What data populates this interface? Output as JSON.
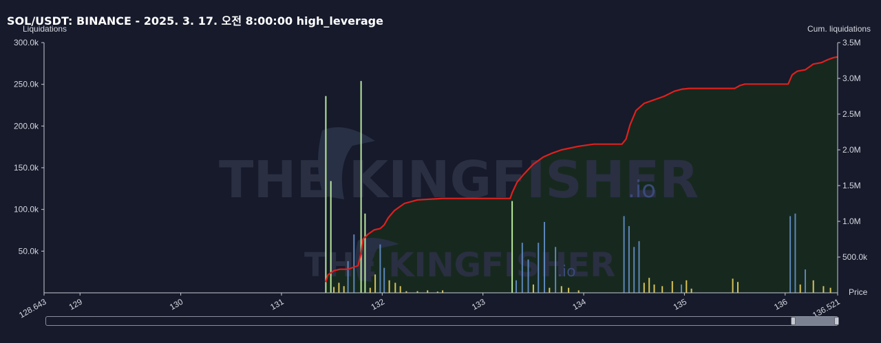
{
  "header": {
    "title": "SOL/USDT: BINANCE - 2025. 3. 17. 오전 8:00:00 high_leverage"
  },
  "watermark": {
    "text": "THE KINGFISHER",
    "suffix": ".io"
  },
  "colors": {
    "background": "#161a2b",
    "cumulative_line": "#e0201e",
    "cumulative_fill": "#17291f",
    "green_bar": "#b9e89a",
    "yellow_bar": "#d8c256",
    "blue_bar": "#5c86b8",
    "axis": "#c9cbd3"
  },
  "chart_data": {
    "type": "bar",
    "left_axis_label": "Liquidations",
    "right_axis_label": "Cum. liquidations",
    "x_axis_label": "Price",
    "xlim": [
      128.643,
      136.521
    ],
    "ylim_left": [
      0,
      300000
    ],
    "ylim_right": [
      0,
      3500000
    ],
    "x_ticks": [
      "128.643",
      "129",
      "130",
      "131",
      "132",
      "133",
      "134",
      "135",
      "136",
      "136.521"
    ],
    "y_left_ticks": [
      "50.0k",
      "100.0k",
      "150.0k",
      "200.0k",
      "250.0k",
      "300.0k"
    ],
    "y_right_ticks": [
      "500.0k",
      "1.0M",
      "1.5M",
      "2.0M",
      "2.5M",
      "3.0M",
      "3.5M"
    ],
    "grid": false,
    "series": [
      {
        "name": "Liquidations",
        "bars": [
          {
            "x": 131.44,
            "value": 236000,
            "color": "green"
          },
          {
            "x": 131.49,
            "value": 134000,
            "color": "green"
          },
          {
            "x": 131.52,
            "value": 7000,
            "color": "yellow"
          },
          {
            "x": 131.57,
            "value": 12000,
            "color": "yellow"
          },
          {
            "x": 131.62,
            "value": 8000,
            "color": "yellow"
          },
          {
            "x": 131.66,
            "value": 38000,
            "color": "blue"
          },
          {
            "x": 131.72,
            "value": 70000,
            "color": "blue"
          },
          {
            "x": 131.79,
            "value": 254000,
            "color": "green"
          },
          {
            "x": 131.83,
            "value": 95000,
            "color": "green"
          },
          {
            "x": 131.88,
            "value": 6000,
            "color": "yellow"
          },
          {
            "x": 131.93,
            "value": 22000,
            "color": "yellow"
          },
          {
            "x": 131.98,
            "value": 58000,
            "color": "blue"
          },
          {
            "x": 132.02,
            "value": 30000,
            "color": "blue"
          },
          {
            "x": 132.07,
            "value": 15000,
            "color": "yellow"
          },
          {
            "x": 132.13,
            "value": 12000,
            "color": "yellow"
          },
          {
            "x": 132.18,
            "value": 8000,
            "color": "yellow"
          },
          {
            "x": 132.24,
            "value": 2000,
            "color": "yellow"
          },
          {
            "x": 132.35,
            "value": 2000,
            "color": "yellow"
          },
          {
            "x": 132.45,
            "value": 3000,
            "color": "yellow"
          },
          {
            "x": 132.55,
            "value": 1500,
            "color": "yellow"
          },
          {
            "x": 132.6,
            "value": 3000,
            "color": "yellow"
          },
          {
            "x": 133.29,
            "value": 110000,
            "color": "green"
          },
          {
            "x": 133.33,
            "value": 15000,
            "color": "blue"
          },
          {
            "x": 133.39,
            "value": 60000,
            "color": "blue"
          },
          {
            "x": 133.45,
            "value": 40000,
            "color": "blue"
          },
          {
            "x": 133.5,
            "value": 10000,
            "color": "yellow"
          },
          {
            "x": 133.55,
            "value": 60000,
            "color": "blue"
          },
          {
            "x": 133.61,
            "value": 85000,
            "color": "blue"
          },
          {
            "x": 133.66,
            "value": 6000,
            "color": "yellow"
          },
          {
            "x": 133.72,
            "value": 55000,
            "color": "blue"
          },
          {
            "x": 133.78,
            "value": 8000,
            "color": "yellow"
          },
          {
            "x": 133.85,
            "value": 6000,
            "color": "yellow"
          },
          {
            "x": 133.95,
            "value": 3000,
            "color": "yellow"
          },
          {
            "x": 134.4,
            "value": 92000,
            "color": "blue"
          },
          {
            "x": 134.45,
            "value": 80000,
            "color": "blue"
          },
          {
            "x": 134.5,
            "value": 55000,
            "color": "blue"
          },
          {
            "x": 134.55,
            "value": 62000,
            "color": "blue"
          },
          {
            "x": 134.6,
            "value": 12000,
            "color": "yellow"
          },
          {
            "x": 134.65,
            "value": 18000,
            "color": "yellow"
          },
          {
            "x": 134.7,
            "value": 10000,
            "color": "yellow"
          },
          {
            "x": 134.78,
            "value": 8000,
            "color": "yellow"
          },
          {
            "x": 134.88,
            "value": 14000,
            "color": "yellow"
          },
          {
            "x": 134.97,
            "value": 10000,
            "color": "blue"
          },
          {
            "x": 135.02,
            "value": 15000,
            "color": "yellow"
          },
          {
            "x": 135.07,
            "value": 5000,
            "color": "yellow"
          },
          {
            "x": 135.48,
            "value": 17000,
            "color": "yellow"
          },
          {
            "x": 135.53,
            "value": 13000,
            "color": "yellow"
          },
          {
            "x": 136.05,
            "value": 92000,
            "color": "blue"
          },
          {
            "x": 136.1,
            "value": 95000,
            "color": "blue"
          },
          {
            "x": 136.15,
            "value": 10000,
            "color": "yellow"
          },
          {
            "x": 136.2,
            "value": 28000,
            "color": "blue"
          },
          {
            "x": 136.28,
            "value": 15000,
            "color": "yellow"
          },
          {
            "x": 136.38,
            "value": 8000,
            "color": "yellow"
          },
          {
            "x": 136.45,
            "value": 6000,
            "color": "yellow"
          }
        ]
      },
      {
        "name": "Cum. liquidations",
        "type": "line",
        "points": [
          [
            131.44,
            150000
          ],
          [
            131.46,
            250000
          ],
          [
            131.52,
            310000
          ],
          [
            131.58,
            330000
          ],
          [
            131.66,
            330000
          ],
          [
            131.72,
            360000
          ],
          [
            131.76,
            380000
          ],
          [
            131.79,
            550000
          ],
          [
            131.81,
            750000
          ],
          [
            131.86,
            820000
          ],
          [
            131.92,
            880000
          ],
          [
            131.98,
            900000
          ],
          [
            132.02,
            950000
          ],
          [
            132.06,
            1050000
          ],
          [
            132.12,
            1150000
          ],
          [
            132.22,
            1250000
          ],
          [
            132.35,
            1300000
          ],
          [
            132.6,
            1320000
          ],
          [
            133.0,
            1320000
          ],
          [
            133.27,
            1320000
          ],
          [
            133.29,
            1400000
          ],
          [
            133.34,
            1550000
          ],
          [
            133.4,
            1650000
          ],
          [
            133.5,
            1800000
          ],
          [
            133.6,
            1900000
          ],
          [
            133.68,
            1950000
          ],
          [
            133.78,
            2000000
          ],
          [
            133.95,
            2050000
          ],
          [
            134.1,
            2080000
          ],
          [
            134.2,
            2080000
          ],
          [
            134.38,
            2080000
          ],
          [
            134.42,
            2150000
          ],
          [
            134.46,
            2350000
          ],
          [
            134.52,
            2550000
          ],
          [
            134.6,
            2650000
          ],
          [
            134.7,
            2700000
          ],
          [
            134.8,
            2750000
          ],
          [
            134.9,
            2820000
          ],
          [
            134.98,
            2850000
          ],
          [
            135.05,
            2860000
          ],
          [
            135.3,
            2860000
          ],
          [
            135.5,
            2860000
          ],
          [
            135.55,
            2900000
          ],
          [
            135.6,
            2920000
          ],
          [
            136.03,
            2920000
          ],
          [
            136.07,
            3050000
          ],
          [
            136.12,
            3100000
          ],
          [
            136.2,
            3120000
          ],
          [
            136.28,
            3200000
          ],
          [
            136.36,
            3220000
          ],
          [
            136.42,
            3260000
          ],
          [
            136.48,
            3290000
          ],
          [
            136.521,
            3300000
          ]
        ]
      }
    ]
  }
}
